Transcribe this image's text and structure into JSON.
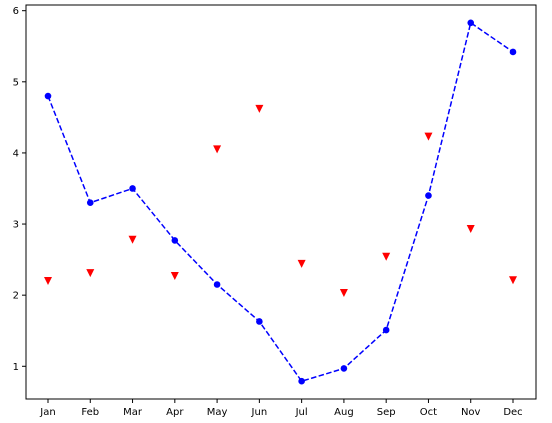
{
  "chart_data": {
    "type": "line",
    "categories": [
      "Jan",
      "Feb",
      "Mar",
      "Apr",
      "May",
      "Jun",
      "Jul",
      "Aug",
      "Sep",
      "Oct",
      "Nov",
      "Dec"
    ],
    "series": [
      {
        "style": "line",
        "marker": "circle",
        "line_style": "dashed",
        "color": "#0000ff",
        "values": [
          4.8,
          3.3,
          3.5,
          2.77,
          2.15,
          1.63,
          0.79,
          0.97,
          1.51,
          3.4,
          5.83,
          5.42
        ]
      },
      {
        "style": "scatter",
        "marker": "triangle-down",
        "color": "#ff0000",
        "values": [
          2.2,
          2.31,
          2.78,
          2.27,
          4.05,
          4.62,
          2.44,
          2.03,
          2.54,
          4.23,
          2.93,
          2.21
        ]
      }
    ],
    "yticks": [
      1,
      2,
      3,
      4,
      5,
      6
    ],
    "ylim": [
      0.54,
      6.08
    ],
    "title": "",
    "xlabel": "",
    "ylabel": "",
    "grid": false,
    "legend": "none"
  }
}
